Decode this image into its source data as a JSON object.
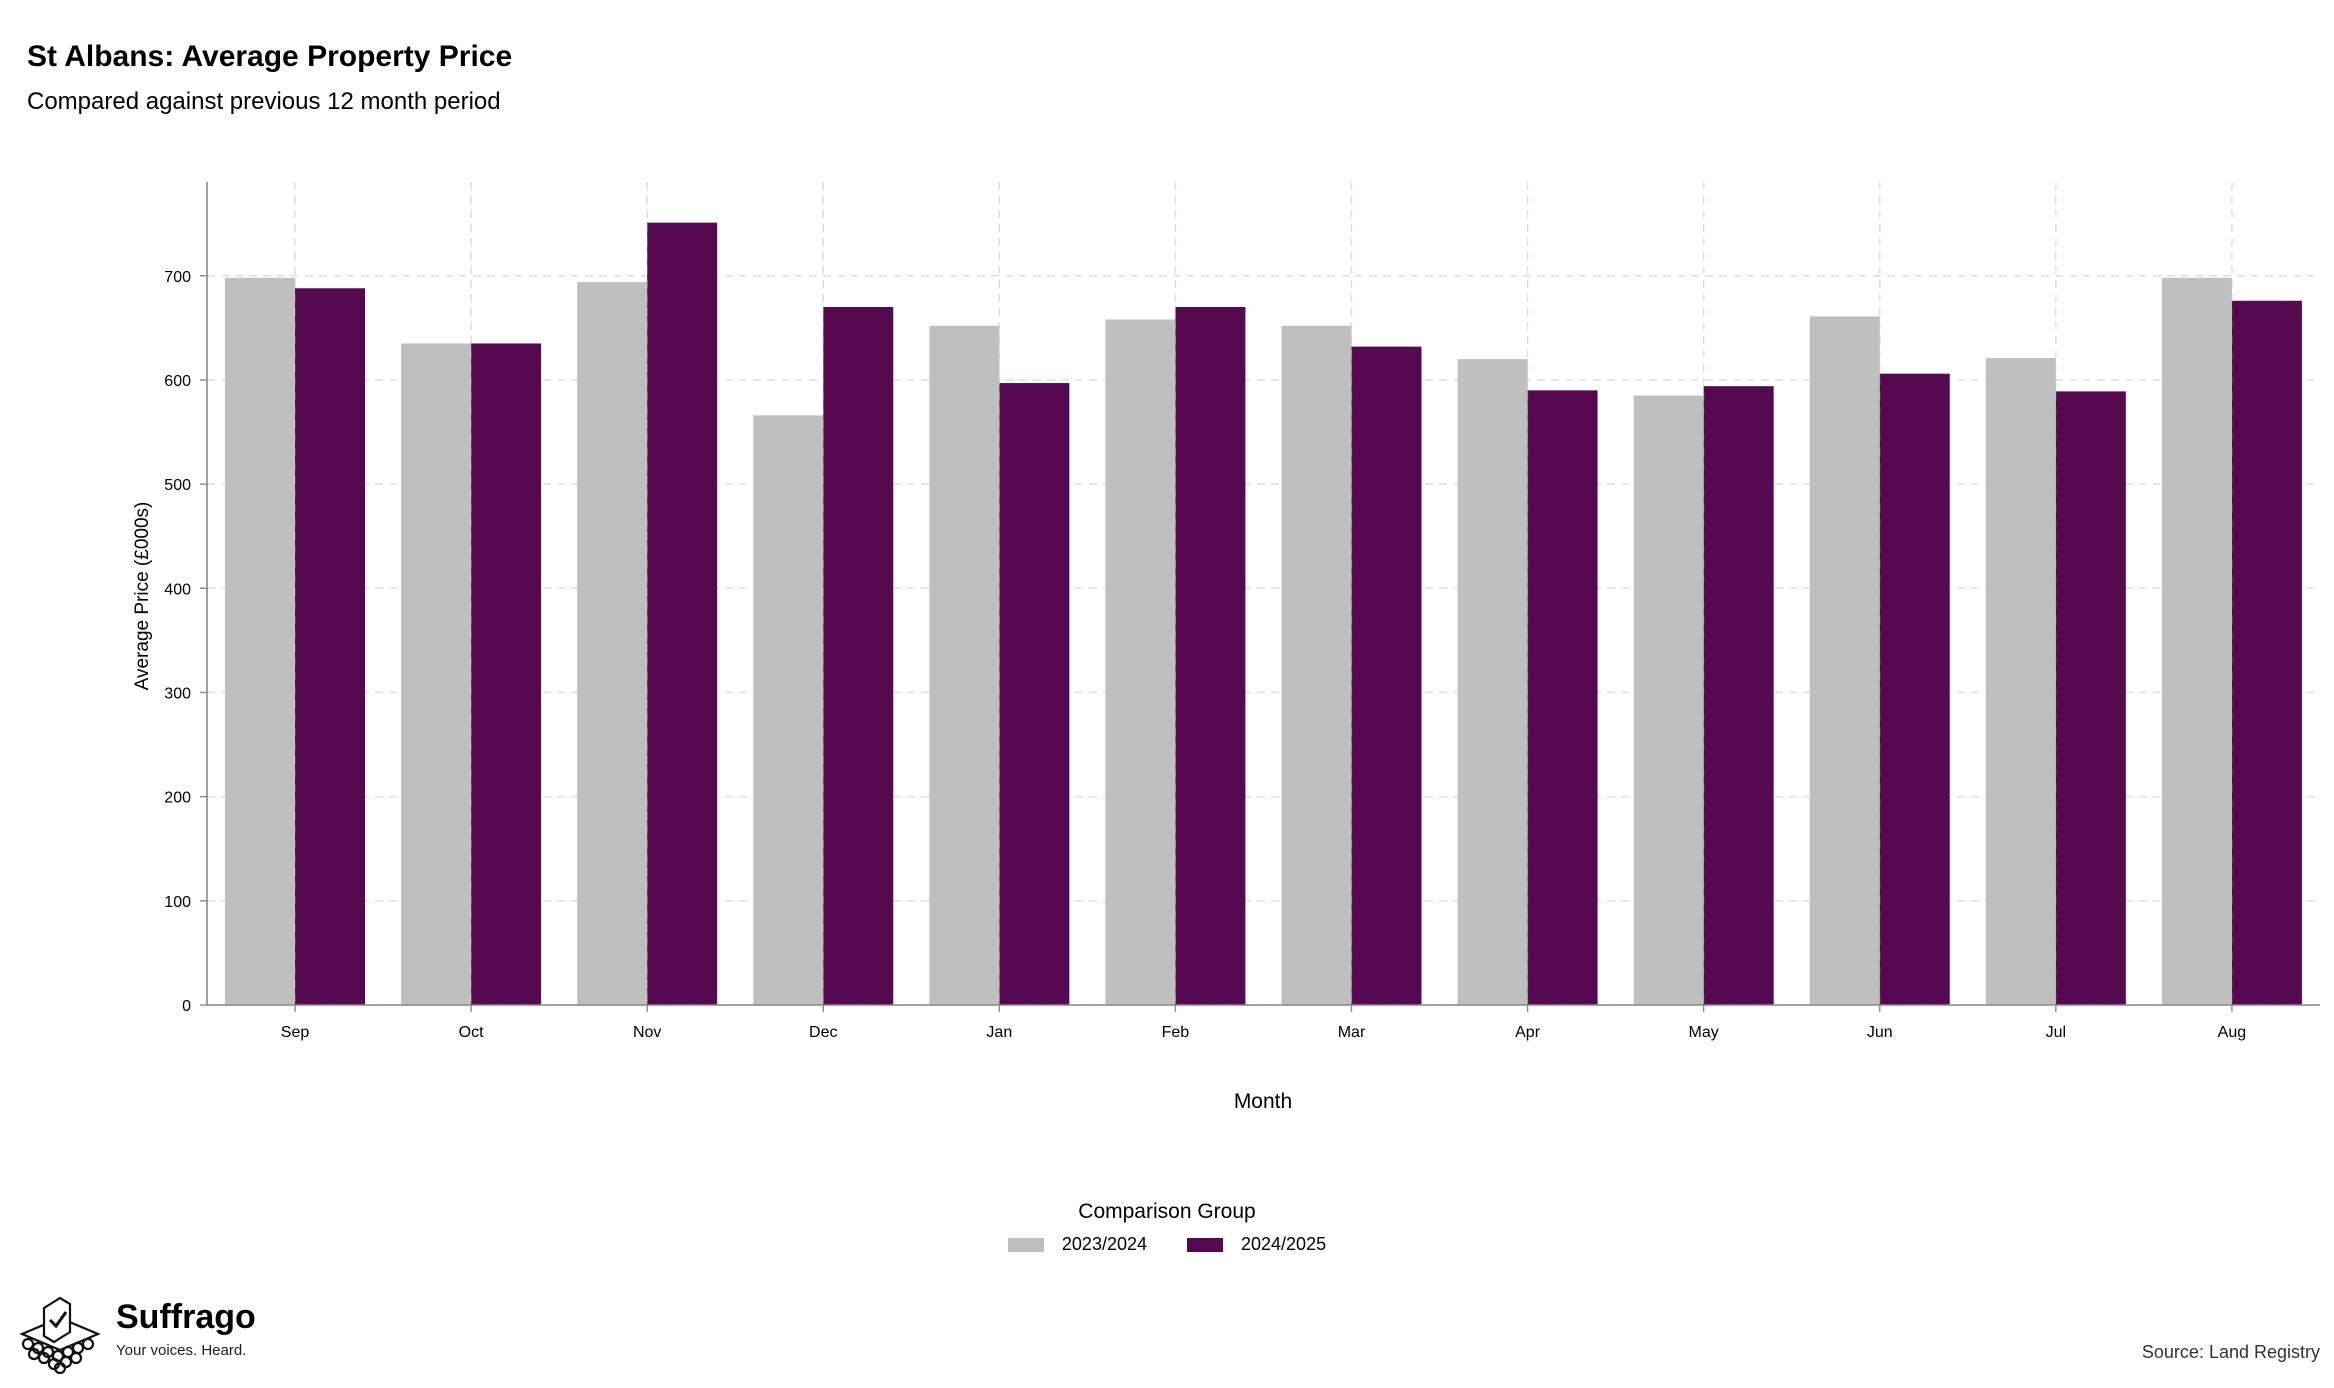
{
  "header": {
    "title": "St Albans: Average Property Price",
    "subtitle": "Compared against previous 12 month period"
  },
  "chart_data": {
    "type": "bar",
    "title": "St Albans: Average Property Price",
    "subtitle": "Compared against previous 12 month period",
    "xlabel": "Month",
    "ylabel": "Average Price (£000s)",
    "ylim": [
      0,
      790
    ],
    "yticks": [
      0,
      100,
      200,
      300,
      400,
      500,
      600,
      700
    ],
    "grid": true,
    "legend_position": "bottom",
    "categories": [
      "Sep",
      "Oct",
      "Nov",
      "Dec",
      "Jan",
      "Feb",
      "Mar",
      "Apr",
      "May",
      "Jun",
      "Jul",
      "Aug"
    ],
    "series": [
      {
        "name": "2023/2024",
        "color": "#bfbfbf",
        "values": [
          698,
          635,
          694,
          566,
          652,
          658,
          652,
          620,
          585,
          661,
          621,
          698
        ]
      },
      {
        "name": "2024/2025",
        "color": "#550a50",
        "values": [
          688,
          635,
          751,
          670,
          597,
          670,
          632,
          590,
          594,
          606,
          589,
          676
        ]
      }
    ]
  },
  "legend": {
    "title": "Comparison Group",
    "items": [
      {
        "label": "2023/2024",
        "color": "#bfbfbf"
      },
      {
        "label": "2024/2025",
        "color": "#550a50"
      }
    ]
  },
  "branding": {
    "name": "Suffrago",
    "tagline": "Your voices. Heard."
  },
  "footer": {
    "source": "Source: Land Registry"
  }
}
